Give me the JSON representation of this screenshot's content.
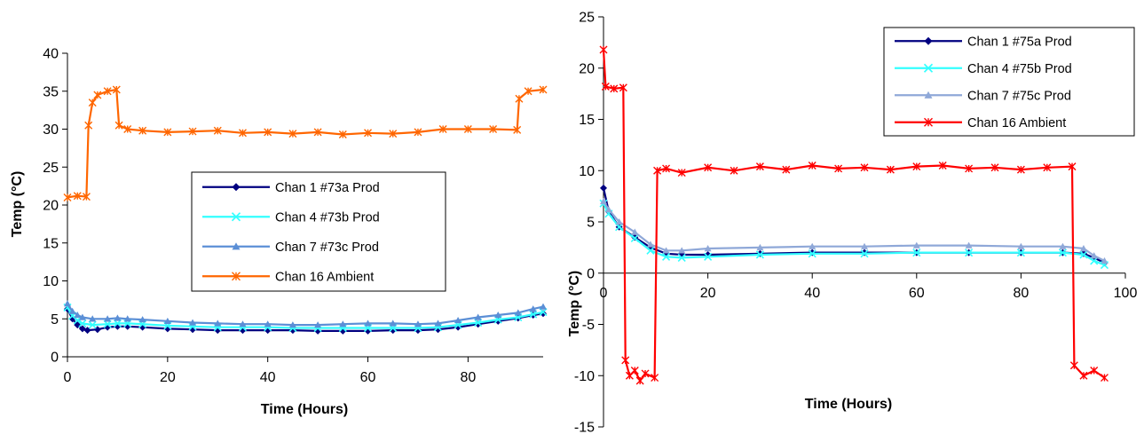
{
  "chart_data": [
    {
      "type": "line",
      "xlabel": "Time (Hours)",
      "ylabel": "Temp (°C)",
      "xlim": [
        0,
        95
      ],
      "ylim": [
        0,
        40
      ],
      "xticks": [
        0,
        20,
        40,
        60,
        80
      ],
      "yticks": [
        0,
        5,
        10,
        15,
        20,
        25,
        30,
        35,
        40
      ],
      "xtick_labels": [
        "0",
        "20",
        "40",
        "60",
        "80"
      ],
      "ytick_labels": [
        "0",
        "5",
        "10",
        "15",
        "20",
        "25",
        "30",
        "35",
        "40"
      ],
      "grid": false,
      "legend_position": "center-right",
      "series": [
        {
          "name": "Chan 1 #73a Prod",
          "color": "#000080",
          "marker": "diamond",
          "points": [
            [
              0,
              6.3
            ],
            [
              1,
              5.0
            ],
            [
              2,
              4.2
            ],
            [
              3,
              3.7
            ],
            [
              4,
              3.5
            ],
            [
              6,
              3.6
            ],
            [
              8,
              3.9
            ],
            [
              10,
              4.0
            ],
            [
              12,
              4.0
            ],
            [
              15,
              3.9
            ],
            [
              20,
              3.7
            ],
            [
              25,
              3.6
            ],
            [
              30,
              3.5
            ],
            [
              35,
              3.5
            ],
            [
              40,
              3.5
            ],
            [
              45,
              3.5
            ],
            [
              50,
              3.4
            ],
            [
              55,
              3.4
            ],
            [
              60,
              3.4
            ],
            [
              65,
              3.5
            ],
            [
              70,
              3.5
            ],
            [
              74,
              3.6
            ],
            [
              78,
              3.9
            ],
            [
              82,
              4.3
            ],
            [
              86,
              4.7
            ],
            [
              90,
              5.1
            ],
            [
              93,
              5.5
            ],
            [
              95,
              5.7
            ]
          ]
        },
        {
          "name": "Chan 4 #73b Prod",
          "color": "#33ffff",
          "marker": "x",
          "points": [
            [
              0,
              6.5
            ],
            [
              1,
              5.4
            ],
            [
              2,
              4.8
            ],
            [
              3,
              4.4
            ],
            [
              5,
              4.2
            ],
            [
              8,
              4.3
            ],
            [
              10,
              4.4
            ],
            [
              12,
              4.4
            ],
            [
              15,
              4.3
            ],
            [
              20,
              4.1
            ],
            [
              25,
              4.0
            ],
            [
              30,
              3.9
            ],
            [
              35,
              3.9
            ],
            [
              40,
              3.9
            ],
            [
              45,
              3.8
            ],
            [
              50,
              3.8
            ],
            [
              55,
              3.8
            ],
            [
              60,
              3.8
            ],
            [
              65,
              3.8
            ],
            [
              70,
              3.8
            ],
            [
              74,
              3.9
            ],
            [
              78,
              4.2
            ],
            [
              82,
              4.5
            ],
            [
              86,
              4.9
            ],
            [
              90,
              5.2
            ],
            [
              93,
              5.6
            ],
            [
              95,
              5.9
            ]
          ]
        },
        {
          "name": "Chan 7 #73c Prod",
          "color": "#5b8fd6",
          "marker": "triangle",
          "points": [
            [
              0,
              7.0
            ],
            [
              1,
              6.0
            ],
            [
              2,
              5.5
            ],
            [
              3,
              5.2
            ],
            [
              5,
              5.0
            ],
            [
              8,
              5.0
            ],
            [
              10,
              5.1
            ],
            [
              12,
              5.0
            ],
            [
              15,
              4.9
            ],
            [
              20,
              4.7
            ],
            [
              25,
              4.5
            ],
            [
              30,
              4.4
            ],
            [
              35,
              4.3
            ],
            [
              40,
              4.3
            ],
            [
              45,
              4.2
            ],
            [
              50,
              4.2
            ],
            [
              55,
              4.3
            ],
            [
              60,
              4.4
            ],
            [
              65,
              4.4
            ],
            [
              70,
              4.3
            ],
            [
              74,
              4.4
            ],
            [
              78,
              4.8
            ],
            [
              82,
              5.2
            ],
            [
              86,
              5.5
            ],
            [
              90,
              5.8
            ],
            [
              93,
              6.3
            ],
            [
              95,
              6.6
            ]
          ]
        },
        {
          "name": "Chan 16 Ambient",
          "color": "#ff6600",
          "marker": "star",
          "points": [
            [
              0,
              21.0
            ],
            [
              2,
              21.2
            ],
            [
              3.8,
              21.1
            ],
            [
              4.2,
              30.5
            ],
            [
              5,
              33.5
            ],
            [
              6,
              34.5
            ],
            [
              8,
              35.0
            ],
            [
              9.8,
              35.2
            ],
            [
              10.3,
              30.5
            ],
            [
              12,
              30.0
            ],
            [
              15,
              29.8
            ],
            [
              20,
              29.6
            ],
            [
              25,
              29.7
            ],
            [
              30,
              29.8
            ],
            [
              35,
              29.5
            ],
            [
              40,
              29.6
            ],
            [
              45,
              29.4
            ],
            [
              50,
              29.6
            ],
            [
              55,
              29.3
            ],
            [
              60,
              29.5
            ],
            [
              65,
              29.4
            ],
            [
              70,
              29.6
            ],
            [
              75,
              30.0
            ],
            [
              80,
              30.0
            ],
            [
              85,
              30.0
            ],
            [
              89.8,
              29.9
            ],
            [
              90.2,
              34.0
            ],
            [
              92,
              35.0
            ],
            [
              95,
              35.2
            ]
          ]
        }
      ]
    },
    {
      "type": "line",
      "xlabel": "Time (Hours)",
      "ylabel": "Temp (°C)",
      "xlim": [
        0,
        100
      ],
      "ylim": [
        -15,
        25
      ],
      "xticks": [
        0,
        20,
        40,
        60,
        80,
        100
      ],
      "yticks": [
        -15,
        -10,
        -5,
        0,
        5,
        10,
        15,
        20,
        25
      ],
      "xtick_labels": [
        "0",
        "20",
        "40",
        "60",
        "80",
        "100"
      ],
      "ytick_labels": [
        "-15",
        "-10",
        "-5",
        "0",
        "5",
        "10",
        "15",
        "20",
        "25"
      ],
      "grid": false,
      "legend_position": "top-right",
      "series": [
        {
          "name": "Chan 1 #75a Prod",
          "color": "#000080",
          "marker": "diamond",
          "points": [
            [
              0,
              8.3
            ],
            [
              1,
              6.0
            ],
            [
              3,
              4.5
            ],
            [
              6,
              3.5
            ],
            [
              9,
              2.5
            ],
            [
              12,
              1.9
            ],
            [
              15,
              1.8
            ],
            [
              20,
              1.8
            ],
            [
              30,
              1.9
            ],
            [
              40,
              2.0
            ],
            [
              50,
              2.0
            ],
            [
              60,
              2.0
            ],
            [
              70,
              2.0
            ],
            [
              80,
              2.0
            ],
            [
              88,
              2.0
            ],
            [
              92,
              1.9
            ],
            [
              94,
              1.5
            ],
            [
              96,
              1.0
            ]
          ]
        },
        {
          "name": "Chan 4 #75b Prod",
          "color": "#33ffff",
          "marker": "x",
          "points": [
            [
              0,
              6.8
            ],
            [
              1,
              5.8
            ],
            [
              3,
              4.5
            ],
            [
              6,
              3.4
            ],
            [
              9,
              2.2
            ],
            [
              12,
              1.6
            ],
            [
              15,
              1.5
            ],
            [
              20,
              1.6
            ],
            [
              30,
              1.8
            ],
            [
              40,
              1.9
            ],
            [
              50,
              1.9
            ],
            [
              60,
              2.0
            ],
            [
              70,
              2.0
            ],
            [
              80,
              2.0
            ],
            [
              88,
              2.0
            ],
            [
              92,
              1.8
            ],
            [
              94,
              1.2
            ],
            [
              96,
              0.8
            ]
          ]
        },
        {
          "name": "Chan 7 #75c Prod",
          "color": "#8fa8d8",
          "marker": "triangle",
          "points": [
            [
              0,
              7.0
            ],
            [
              1,
              6.2
            ],
            [
              3,
              5.0
            ],
            [
              6,
              4.0
            ],
            [
              9,
              2.8
            ],
            [
              12,
              2.2
            ],
            [
              15,
              2.2
            ],
            [
              20,
              2.4
            ],
            [
              30,
              2.5
            ],
            [
              40,
              2.6
            ],
            [
              50,
              2.6
            ],
            [
              60,
              2.7
            ],
            [
              70,
              2.7
            ],
            [
              80,
              2.6
            ],
            [
              88,
              2.6
            ],
            [
              92,
              2.4
            ],
            [
              94,
              1.7
            ],
            [
              96,
              1.2
            ]
          ]
        },
        {
          "name": "Chan 16 Ambient",
          "color": "#ff0000",
          "marker": "star",
          "points": [
            [
              0,
              21.8
            ],
            [
              0.4,
              18.2
            ],
            [
              2,
              18.0
            ],
            [
              3.8,
              18.1
            ],
            [
              4.2,
              -8.5
            ],
            [
              5,
              -10.0
            ],
            [
              6,
              -9.5
            ],
            [
              7,
              -10.5
            ],
            [
              8,
              -9.8
            ],
            [
              9.8,
              -10.2
            ],
            [
              10.3,
              10.0
            ],
            [
              12,
              10.2
            ],
            [
              15,
              9.8
            ],
            [
              20,
              10.3
            ],
            [
              25,
              10.0
            ],
            [
              30,
              10.4
            ],
            [
              35,
              10.1
            ],
            [
              40,
              10.5
            ],
            [
              45,
              10.2
            ],
            [
              50,
              10.3
            ],
            [
              55,
              10.1
            ],
            [
              60,
              10.4
            ],
            [
              65,
              10.5
            ],
            [
              70,
              10.2
            ],
            [
              75,
              10.3
            ],
            [
              80,
              10.1
            ],
            [
              85,
              10.3
            ],
            [
              89.8,
              10.4
            ],
            [
              90.2,
              -9.0
            ],
            [
              92,
              -10.0
            ],
            [
              94,
              -9.5
            ],
            [
              96,
              -10.2
            ]
          ]
        }
      ]
    }
  ]
}
